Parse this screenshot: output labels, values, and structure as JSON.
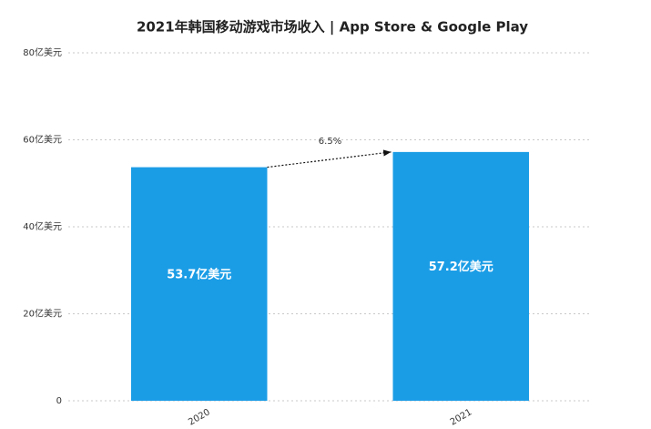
{
  "chart_data": {
    "type": "bar",
    "title": "2021年韩国移动游戏市场收入 | App Store & Google Play",
    "categories": [
      "2020",
      "2021"
    ],
    "values": [
      53.7,
      57.2
    ],
    "value_labels": [
      "53.7亿美元",
      "57.2亿美元"
    ],
    "color": "#1b9de6",
    "ylim": [
      0,
      80
    ],
    "yticks": [
      0,
      {
        "value": 20,
        "label": "20亿美元"
      },
      {
        "value": 40,
        "label": "40亿美元"
      },
      {
        "value": 60,
        "label": "60亿美元"
      },
      {
        "value": 80,
        "label": "80亿美元"
      }
    ],
    "grid": true,
    "annotation": "6.5%"
  }
}
